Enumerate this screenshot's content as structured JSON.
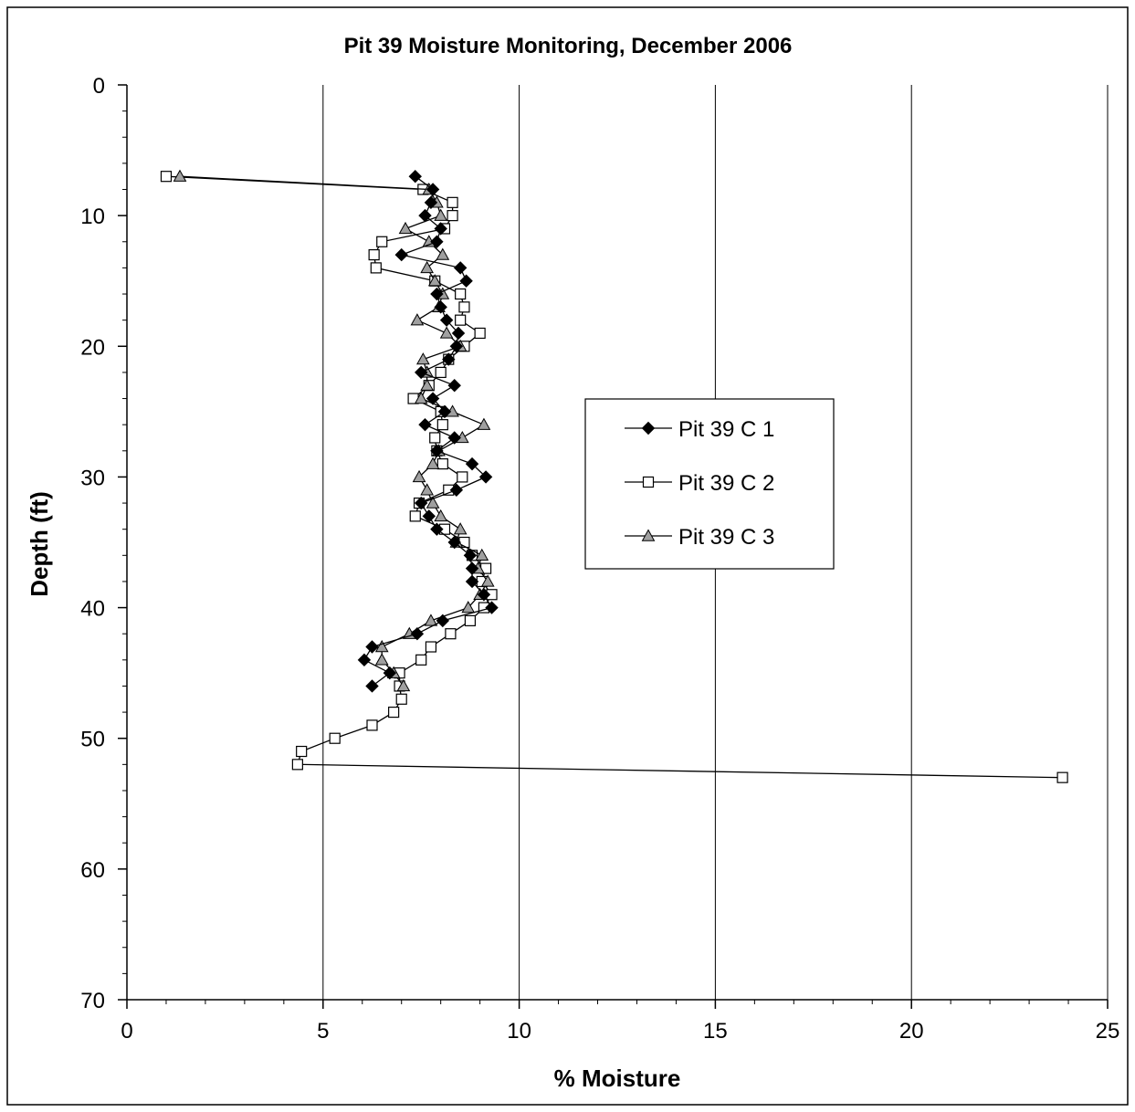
{
  "chart_data": {
    "type": "line",
    "title": "Pit 39 Moisture Monitoring, December 2006",
    "xlabel": "% Moisture",
    "ylabel": "Depth (ft)",
    "xlim": [
      0,
      25
    ],
    "ylim": [
      0,
      70
    ],
    "y_inverted": true,
    "x_ticks": [
      "0",
      "5",
      "10",
      "15",
      "20",
      "25"
    ],
    "y_ticks": [
      "0",
      "10",
      "20",
      "30",
      "40",
      "50",
      "60",
      "70"
    ],
    "x_tick_values": [
      0,
      5,
      10,
      15,
      20,
      25
    ],
    "y_tick_values": [
      0,
      10,
      20,
      30,
      40,
      50,
      60,
      70
    ],
    "grid": "vertical",
    "legend_position": "center-right",
    "series": [
      {
        "name": "Pit 39 C 1",
        "marker": "diamond",
        "color": "#000000",
        "fill": "#000000",
        "points": [
          [
            7.35,
            7
          ],
          [
            7.8,
            8
          ],
          [
            7.75,
            9
          ],
          [
            7.6,
            10
          ],
          [
            8.0,
            11
          ],
          [
            7.9,
            12
          ],
          [
            7.0,
            13
          ],
          [
            8.5,
            14
          ],
          [
            8.65,
            15
          ],
          [
            7.9,
            16
          ],
          [
            8.0,
            17
          ],
          [
            8.15,
            18
          ],
          [
            8.45,
            19
          ],
          [
            8.4,
            20
          ],
          [
            8.2,
            21
          ],
          [
            7.5,
            22
          ],
          [
            8.35,
            23
          ],
          [
            7.8,
            24
          ],
          [
            8.1,
            25
          ],
          [
            7.6,
            26
          ],
          [
            8.35,
            27
          ],
          [
            7.9,
            28
          ],
          [
            8.8,
            29
          ],
          [
            9.15,
            30
          ],
          [
            8.4,
            31
          ],
          [
            7.5,
            32
          ],
          [
            7.7,
            33
          ],
          [
            7.9,
            34
          ],
          [
            8.35,
            35
          ],
          [
            8.75,
            36
          ],
          [
            8.8,
            37
          ],
          [
            8.8,
            38
          ],
          [
            9.1,
            39
          ],
          [
            9.3,
            40
          ],
          [
            8.05,
            41
          ],
          [
            7.4,
            42
          ],
          [
            6.25,
            43
          ],
          [
            6.05,
            44
          ],
          [
            6.7,
            45
          ],
          [
            6.25,
            46
          ]
        ]
      },
      {
        "name": "Pit 39 C 2",
        "marker": "square",
        "color": "#000000",
        "fill": "#ffffff",
        "points": [
          [
            1.0,
            7
          ],
          [
            7.55,
            8
          ],
          [
            8.3,
            9
          ],
          [
            8.3,
            10
          ],
          [
            8.1,
            11
          ],
          [
            6.5,
            12
          ],
          [
            6.3,
            13
          ],
          [
            6.35,
            14
          ],
          [
            7.85,
            15
          ],
          [
            8.5,
            16
          ],
          [
            8.6,
            17
          ],
          [
            8.5,
            18
          ],
          [
            9.0,
            19
          ],
          [
            8.6,
            20
          ],
          [
            8.2,
            21
          ],
          [
            8.0,
            22
          ],
          [
            7.7,
            23
          ],
          [
            7.3,
            24
          ],
          [
            8.0,
            25
          ],
          [
            8.05,
            26
          ],
          [
            7.85,
            27
          ],
          [
            7.9,
            28
          ],
          [
            8.05,
            29
          ],
          [
            8.55,
            30
          ],
          [
            8.2,
            31
          ],
          [
            7.45,
            32
          ],
          [
            7.35,
            33
          ],
          [
            8.1,
            34
          ],
          [
            8.6,
            35
          ],
          [
            8.8,
            36
          ],
          [
            9.15,
            37
          ],
          [
            9.05,
            38
          ],
          [
            9.3,
            39
          ],
          [
            9.1,
            40
          ],
          [
            8.75,
            41
          ],
          [
            8.25,
            42
          ],
          [
            7.75,
            43
          ],
          [
            7.5,
            44
          ],
          [
            6.95,
            45
          ],
          [
            6.95,
            46
          ],
          [
            7.0,
            47
          ],
          [
            6.8,
            48
          ],
          [
            6.25,
            49
          ],
          [
            5.3,
            50
          ],
          [
            4.45,
            51
          ],
          [
            4.35,
            52
          ],
          [
            23.85,
            53
          ]
        ]
      },
      {
        "name": "Pit 39 C 3",
        "marker": "triangle",
        "color": "#000000",
        "fill": "#a0a0a0",
        "points": [
          [
            1.35,
            7
          ],
          [
            7.7,
            8
          ],
          [
            7.9,
            9
          ],
          [
            8.0,
            10
          ],
          [
            7.1,
            11
          ],
          [
            7.7,
            12
          ],
          [
            8.05,
            13
          ],
          [
            7.65,
            14
          ],
          [
            7.85,
            15
          ],
          [
            8.05,
            16
          ],
          [
            7.95,
            17
          ],
          [
            7.4,
            18
          ],
          [
            8.15,
            19
          ],
          [
            8.5,
            20
          ],
          [
            7.55,
            21
          ],
          [
            7.65,
            22
          ],
          [
            7.65,
            23
          ],
          [
            7.5,
            24
          ],
          [
            8.3,
            25
          ],
          [
            9.1,
            26
          ],
          [
            8.55,
            27
          ],
          [
            7.95,
            28
          ],
          [
            7.8,
            29
          ],
          [
            7.45,
            30
          ],
          [
            7.65,
            31
          ],
          [
            7.8,
            32
          ],
          [
            8.0,
            33
          ],
          [
            8.5,
            34
          ],
          [
            8.4,
            35
          ],
          [
            9.05,
            36
          ],
          [
            8.95,
            37
          ],
          [
            9.2,
            38
          ],
          [
            9.0,
            39
          ],
          [
            8.7,
            40
          ],
          [
            7.75,
            41
          ],
          [
            7.2,
            42
          ],
          [
            6.5,
            43
          ],
          [
            6.5,
            44
          ],
          [
            6.8,
            45
          ],
          [
            7.05,
            46
          ]
        ]
      }
    ]
  }
}
